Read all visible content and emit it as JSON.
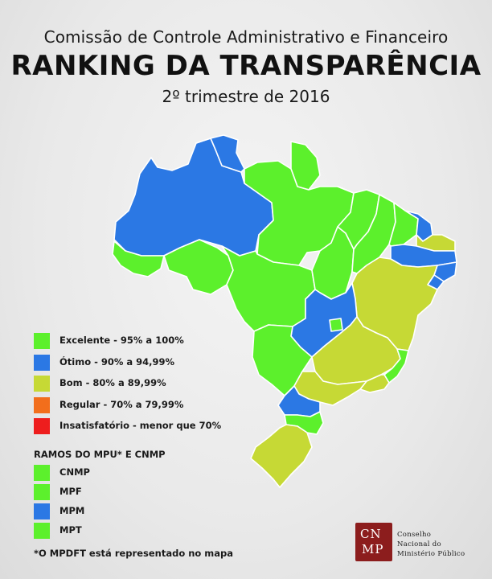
{
  "header": {
    "organization": "Comissão de Controle Administrativo e Financeiro",
    "title": "RANKING  DA TRANSPARÊNCIA",
    "period": "2º trimestre de 2016"
  },
  "colors": {
    "excelente": "#5cf02c",
    "otimo": "#2b78e4",
    "bom": "#c6d935",
    "regular": "#f26e1c",
    "insatisfatorio": "#ee1d1d",
    "border": "#ffffff",
    "logo_brand": "#8c1d1d"
  },
  "legend": [
    {
      "label": "Excelente - 95% a 100%",
      "color_key": "excelente"
    },
    {
      "label": "Ótimo - 90% a 94,99%",
      "color_key": "otimo"
    },
    {
      "label": "Bom - 80% a 89,99%",
      "color_key": "bom"
    },
    {
      "label": "Regular - 70% a 79,99%",
      "color_key": "regular"
    },
    {
      "label": "Insatisfatório - menor que 70%",
      "color_key": "insatisfatorio"
    }
  ],
  "ramos": {
    "title": "RAMOS DO MPU* E CNMP",
    "items": [
      {
        "label": "CNMP",
        "color_key": "excelente"
      },
      {
        "label": "MPF",
        "color_key": "excelente"
      },
      {
        "label": "MPM",
        "color_key": "otimo"
      },
      {
        "label": "MPT",
        "color_key": "excelente"
      }
    ]
  },
  "footnote": "*O MPDFT está representado no mapa",
  "logo": {
    "mark_top": "CN",
    "mark_bottom": "MP",
    "lines": [
      "Conselho",
      "Nacional do",
      "Ministério Público"
    ]
  },
  "map_regions": [
    {
      "state": "RR",
      "color_key": "otimo"
    },
    {
      "state": "AP",
      "color_key": "excelente"
    },
    {
      "state": "AM",
      "color_key": "otimo"
    },
    {
      "state": "PA",
      "color_key": "excelente"
    },
    {
      "state": "AC",
      "color_key": "excelente"
    },
    {
      "state": "RO",
      "color_key": "excelente"
    },
    {
      "state": "MT",
      "color_key": "excelente"
    },
    {
      "state": "TO",
      "color_key": "excelente"
    },
    {
      "state": "MA",
      "color_key": "excelente"
    },
    {
      "state": "PI",
      "color_key": "excelente"
    },
    {
      "state": "CE",
      "color_key": "excelente"
    },
    {
      "state": "RN",
      "color_key": "otimo"
    },
    {
      "state": "PB",
      "color_key": "bom"
    },
    {
      "state": "PE",
      "color_key": "otimo"
    },
    {
      "state": "AL",
      "color_key": "otimo"
    },
    {
      "state": "SE",
      "color_key": "otimo"
    },
    {
      "state": "BA",
      "color_key": "bom"
    },
    {
      "state": "GO",
      "color_key": "otimo"
    },
    {
      "state": "DF",
      "color_key": "excelente"
    },
    {
      "state": "MS",
      "color_key": "excelente"
    },
    {
      "state": "MG",
      "color_key": "bom"
    },
    {
      "state": "ES",
      "color_key": "excelente"
    },
    {
      "state": "RJ",
      "color_key": "bom"
    },
    {
      "state": "SP",
      "color_key": "bom"
    },
    {
      "state": "PR",
      "color_key": "otimo"
    },
    {
      "state": "SC",
      "color_key": "excelente"
    },
    {
      "state": "RS",
      "color_key": "bom"
    }
  ]
}
